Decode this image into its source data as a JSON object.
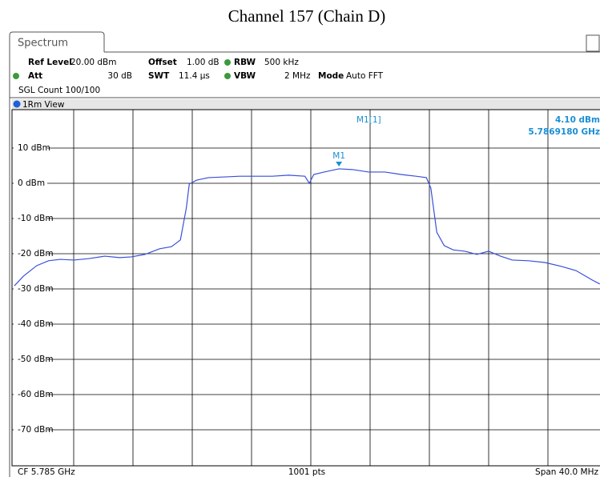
{
  "chart_data": {
    "type": "line",
    "title": "Channel 157 (Chain D)",
    "tab": "Spectrum",
    "settings": {
      "ref_level_label": "Ref Level",
      "ref_level": "20.00 dBm",
      "offset_label": "Offset",
      "offset": "1.00 dB",
      "rbw_label": "RBW",
      "rbw": "500 kHz",
      "att_label": "Att",
      "att": "30 dB",
      "swt_label": "SWT",
      "swt": "11.4 µs",
      "vbw_label": "VBW",
      "vbw": "2 MHz",
      "mode_label": "Mode",
      "mode": "Auto FFT",
      "count": "SGL Count 100/100"
    },
    "view": "1Rm View",
    "footer": {
      "center": "CF 5.785 GHz",
      "points": "1001 pts",
      "span": "Span 40.0 MHz"
    },
    "marker": {
      "label": "M1",
      "readout": "M1[1]",
      "level": "4.10 dBm",
      "frequency": "5.7869180 GHz",
      "index": 27,
      "color": "#1a8fd4"
    },
    "xlim": [
      5.765,
      5.805
    ],
    "ylim": [
      -80,
      20
    ],
    "yticks": [
      {
        "value": 10,
        "label": "10 dBm"
      },
      {
        "value": 0,
        "label": "0 dBm"
      },
      {
        "value": -10,
        "label": "-10 dBm"
      },
      {
        "value": -20,
        "label": "-20 dBm"
      },
      {
        "value": -30,
        "label": "-30 dBm"
      },
      {
        "value": -40,
        "label": "-40 dBm"
      },
      {
        "value": -50,
        "label": "-50 dBm"
      },
      {
        "value": -60,
        "label": "-60 dBm"
      },
      {
        "value": -70,
        "label": "-70 dBm"
      }
    ],
    "grid": true,
    "x": [
      5.765,
      5.7656,
      5.7665,
      5.7673,
      5.7681,
      5.769,
      5.77,
      5.7711,
      5.7721,
      5.7729,
      5.7738,
      5.7748,
      5.7756,
      5.7762,
      5.7766,
      5.7768,
      5.7773,
      5.7781,
      5.7792,
      5.7802,
      5.7813,
      5.7824,
      5.7835,
      5.7846,
      5.7849,
      5.7852,
      5.7859,
      5.7869,
      5.7878,
      5.7889,
      5.79,
      5.7911,
      5.7921,
      5.7928,
      5.7931,
      5.7935,
      5.794,
      5.7946,
      5.7954,
      5.7962,
      5.797,
      5.7978,
      5.7986,
      5.7997,
      5.8008,
      5.8019,
      5.8029,
      5.804,
      5.8045
    ],
    "series": [
      {
        "color": "#3a4fd8",
        "values": [
          -29.1,
          -26.4,
          -23.4,
          -22.0,
          -21.6,
          -21.8,
          -21.4,
          -20.7,
          -21.1,
          -20.9,
          -20.2,
          -18.6,
          -18.0,
          -16.1,
          -7.0,
          -0.2,
          0.9,
          1.6,
          1.8,
          2.0,
          2.0,
          2.0,
          2.3,
          2.0,
          0.0,
          2.5,
          3.2,
          4.1,
          3.9,
          3.2,
          3.2,
          2.5,
          2.0,
          1.6,
          -1.4,
          -13.9,
          -17.7,
          -18.9,
          -19.3,
          -20.2,
          -19.3,
          -20.7,
          -21.8,
          -22.0,
          -22.5,
          -23.6,
          -24.8,
          -27.5,
          -28.6
        ]
      }
    ]
  }
}
